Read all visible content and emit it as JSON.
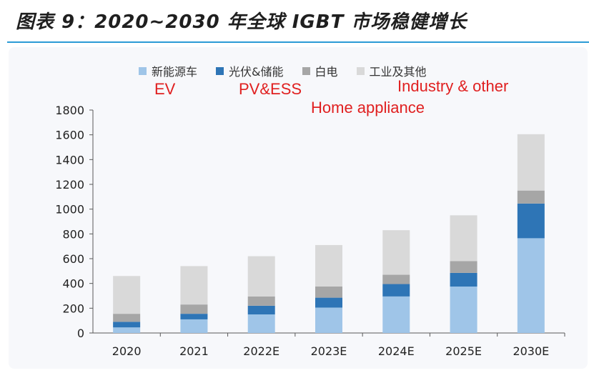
{
  "title": "图表 9：2020~2030 年全球 IGBT 市场稳健增长",
  "legend": [
    {
      "label": "新能源车",
      "color": "#9fc5e8"
    },
    {
      "label": "光伏&储能",
      "color": "#2e75b6"
    },
    {
      "label": "白电",
      "color": "#a6a6a6"
    },
    {
      "label": "工业及其他",
      "color": "#d9d9d9"
    }
  ],
  "annotations": {
    "ev": "EV",
    "pv": "PV&ESS",
    "industry": "Industry & other",
    "home": "Home appliance"
  },
  "chart_data": {
    "type": "bar",
    "stacked": true,
    "categories": [
      "2020",
      "2021",
      "2022E",
      "2023E",
      "2024E",
      "2025E",
      "2030E"
    ],
    "series": [
      {
        "name": "新能源车",
        "color": "#9fc5e8",
        "values": [
          45,
          110,
          150,
          205,
          295,
          375,
          765
        ]
      },
      {
        "name": "光伏&储能",
        "color": "#2e75b6",
        "values": [
          45,
          45,
          70,
          80,
          100,
          110,
          280
        ]
      },
      {
        "name": "白电",
        "color": "#a6a6a6",
        "values": [
          65,
          75,
          75,
          90,
          75,
          95,
          105
        ]
      },
      {
        "name": "工业及其他",
        "color": "#d9d9d9",
        "values": [
          305,
          310,
          325,
          335,
          360,
          370,
          455
        ]
      }
    ],
    "yticks": [
      0,
      200,
      400,
      600,
      800,
      1000,
      1200,
      1400,
      1600,
      1800
    ],
    "ylim": [
      0,
      1800
    ],
    "grid": false,
    "legend_position": "top"
  }
}
